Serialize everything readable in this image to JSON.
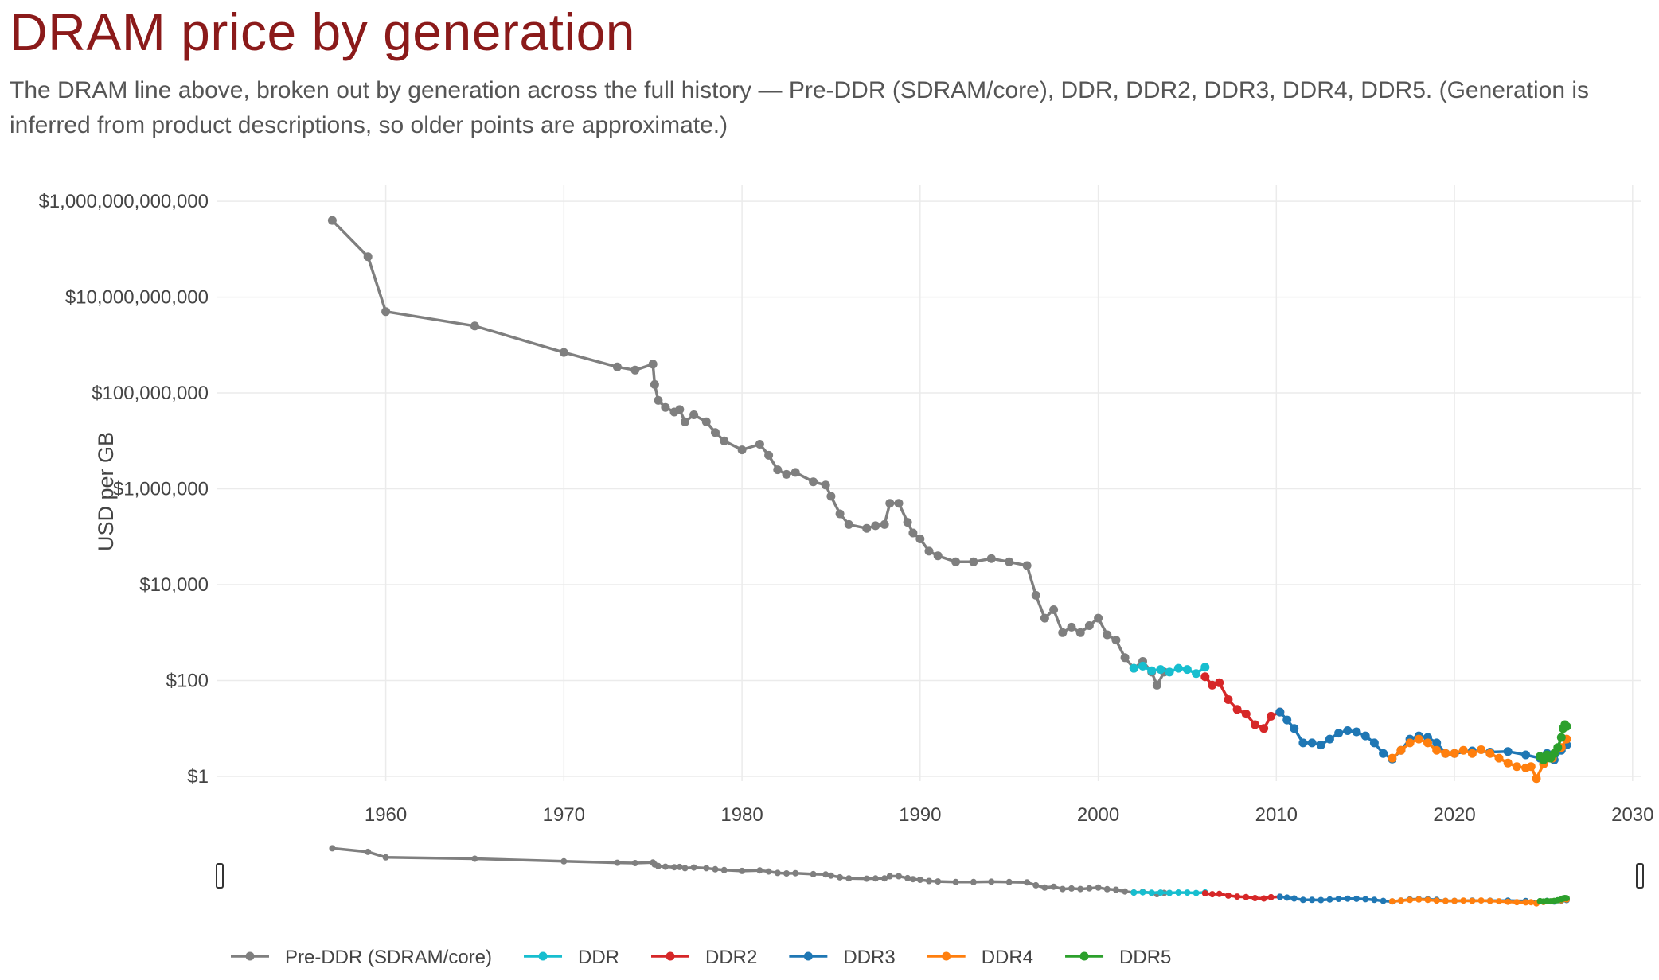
{
  "title": "DRAM price by generation",
  "subtitle": "The DRAM line above, broken out by generation across the full history — Pre-DDR (SDRAM/core), DDR, DDR2, DDR3, DDR4, DDR5. (Generation is inferred from product descriptions, so older points are approximate.)",
  "chart_data": {
    "type": "line",
    "title": "",
    "xlabel": "",
    "ylabel": "USD per GB",
    "y_scale": "log",
    "xlim": [
      1950.5,
      2030.5
    ],
    "ylim_log10": [
      -0.1,
      12.35
    ],
    "x_ticks": [
      1960,
      1970,
      1980,
      1990,
      2000,
      2010,
      2020,
      2030
    ],
    "x_tick_labels": [
      "1960",
      "1970",
      "1980",
      "1990",
      "2000",
      "2010",
      "2020",
      "2030"
    ],
    "y_ticks": [
      1,
      100,
      10000,
      1000000,
      100000000,
      10000000000,
      1000000000000
    ],
    "y_tick_labels": [
      "$1",
      "$100",
      "$10,000",
      "$1,000,000",
      "$100,000,000",
      "$10,000,000,000",
      "$1,000,000,000,000"
    ],
    "grid": true,
    "legend_position": "bottom",
    "range_slider": true,
    "series": [
      {
        "name": "Pre-DDR (SDRAM/core)",
        "color": "#7f7f7f",
        "x": [
          1957,
          1959,
          1960,
          1965,
          1970,
          1973,
          1974,
          1975,
          1975.1,
          1975.3,
          1975.7,
          1976.2,
          1976.5,
          1976.8,
          1977.3,
          1978,
          1978.5,
          1979,
          1980,
          1981,
          1981.5,
          1982,
          1982.5,
          1983,
          1984,
          1984.7,
          1985,
          1985.5,
          1986,
          1987,
          1987.5,
          1988,
          1988.3,
          1988.8,
          1989.3,
          1989.6,
          1990,
          1990.5,
          1991,
          1992,
          1993,
          1994,
          1995,
          1996,
          1996.5,
          1997,
          1997.5,
          1998,
          1998.5,
          1999,
          1999.5,
          2000,
          2000.5,
          2001,
          2001.5,
          2002,
          2002.5,
          2003,
          2003.3,
          2003.7
        ],
        "y": [
          400000000000,
          70000000000,
          5000000000,
          2500000000,
          700000000,
          350000000,
          300000000,
          400000000,
          150000000,
          70000000,
          50000000,
          40000000,
          45000000,
          25000000,
          35000000,
          25000000,
          15000000,
          10000000,
          6500000,
          8500000,
          5000000,
          2500000,
          2000000,
          2200000,
          1400000,
          1200000,
          700000,
          300000,
          180000,
          150000,
          170000,
          180000,
          500000,
          500000,
          200000,
          120000,
          90000,
          50000,
          40000,
          30000,
          30000,
          35000,
          30000,
          25000,
          6000,
          2000,
          3000,
          1000,
          1300,
          1000,
          1400,
          2000,
          900,
          700,
          300,
          180,
          250,
          150,
          80,
          150
        ]
      },
      {
        "name": "DDR",
        "color": "#17becf",
        "x": [
          2002,
          2002.5,
          2003,
          2003.5,
          2004,
          2004.5,
          2005,
          2005.5,
          2006
        ],
        "y": [
          180,
          200,
          160,
          170,
          150,
          180,
          170,
          140,
          190
        ]
      },
      {
        "name": "DDR2",
        "color": "#d62728",
        "x": [
          2006,
          2006.4,
          2006.8,
          2007.3,
          2007.8,
          2008.3,
          2008.8,
          2009.3,
          2009.7,
          2010.2
        ],
        "y": [
          120,
          80,
          90,
          40,
          25,
          20,
          12,
          10,
          18,
          22
        ]
      },
      {
        "name": "DDR3",
        "color": "#1f77b4",
        "x": [
          2010.2,
          2010.6,
          2011,
          2011.5,
          2012,
          2012.5,
          2013,
          2013.5,
          2014,
          2014.5,
          2015,
          2015.5,
          2016,
          2016.5,
          2017,
          2017.5,
          2018,
          2018.5,
          2019,
          2019.5,
          2020,
          2021,
          2022,
          2023,
          2024,
          2024.8,
          2025.2,
          2025.6,
          2026,
          2026.3
        ],
        "y": [
          22,
          15,
          10,
          5,
          5,
          4.5,
          6,
          8,
          9,
          8.5,
          7,
          5,
          3,
          2.3,
          3.5,
          6,
          7,
          6.5,
          5,
          3,
          3,
          3.4,
          3.2,
          3.3,
          2.8,
          2.4,
          3.0,
          2.2,
          3.5,
          4.5
        ]
      },
      {
        "name": "DDR4",
        "color": "#ff7f0e",
        "x": [
          2016.5,
          2017,
          2017.5,
          2018,
          2018.5,
          2019,
          2019.5,
          2020,
          2020.5,
          2021,
          2021.5,
          2022,
          2022.5,
          2023,
          2023.5,
          2024,
          2024.3,
          2024.6,
          2025,
          2025.5,
          2026,
          2026.3
        ],
        "y": [
          2.4,
          3.5,
          5,
          6,
          5,
          3.5,
          3,
          3,
          3.5,
          3,
          3.6,
          3,
          2.4,
          1.9,
          1.6,
          1.5,
          1.6,
          0.9,
          1.8,
          2.4,
          4,
          6
        ]
      },
      {
        "name": "DDR5",
        "color": "#2ca02c",
        "x": [
          2024.8,
          2025,
          2025.2,
          2025.4,
          2025.6,
          2025.8,
          2026,
          2026.1,
          2026.2,
          2026.3
        ],
        "y": [
          2.6,
          2.2,
          2.8,
          2.4,
          3.0,
          4.0,
          6.5,
          10,
          12,
          11
        ]
      }
    ]
  }
}
